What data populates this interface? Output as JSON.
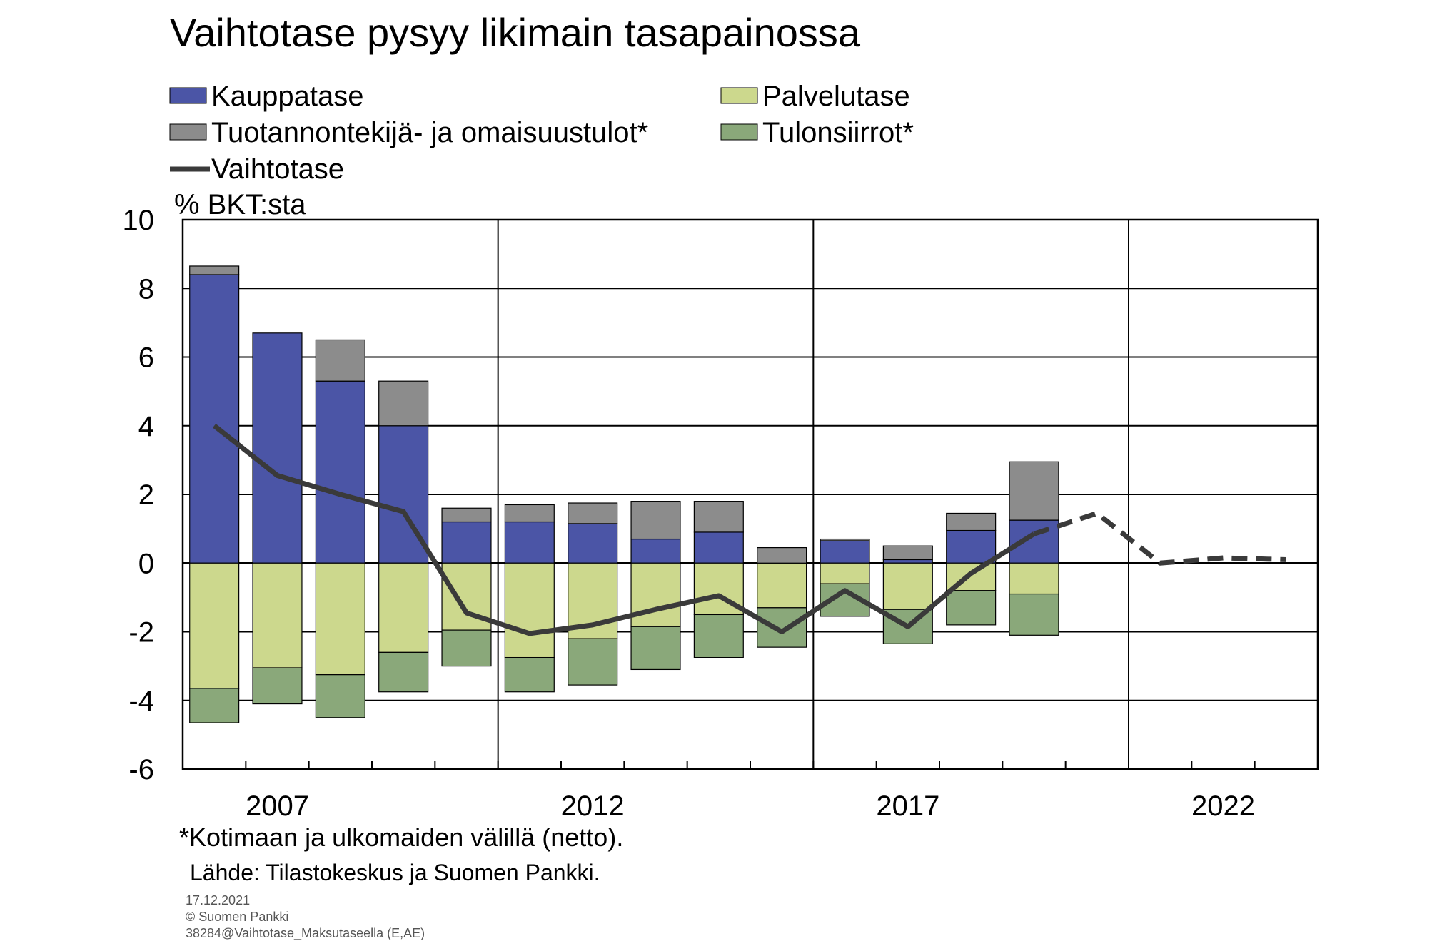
{
  "chart_data": {
    "type": "bar",
    "title": "Vaihtotase pysyy likimain tasapainossa",
    "ylabel": "% BKT:sta",
    "ylim": [
      -6,
      10
    ],
    "yticks": [
      "10",
      "8",
      "6",
      "4",
      "2",
      "0",
      "-2",
      "-4",
      "-6"
    ],
    "x_tick_labels": [
      "2007",
      "2012",
      "2017",
      "2022"
    ],
    "years": [
      2006,
      2007,
      2008,
      2009,
      2010,
      2011,
      2012,
      2013,
      2014,
      2015,
      2016,
      2017,
      2018,
      2019,
      2020,
      2021,
      2022,
      2023
    ],
    "stacked": true,
    "grid": true,
    "legend_position": "top",
    "series": [
      {
        "name": "Kauppatase",
        "color": "#4b55a6",
        "type": "bar",
        "values": [
          8.4,
          6.7,
          5.3,
          4.0,
          1.2,
          1.2,
          1.15,
          0.7,
          0.9,
          0.0,
          0.65,
          0.1,
          0.95,
          1.25,
          null,
          null,
          null,
          null
        ]
      },
      {
        "name": "Palvelutase",
        "color": "#ccd88d",
        "type": "bar",
        "values": [
          -3.65,
          -3.05,
          -3.25,
          -2.6,
          -1.95,
          -2.75,
          -2.2,
          -1.85,
          -1.5,
          -1.3,
          -0.6,
          -1.35,
          -0.8,
          -0.9,
          null,
          null,
          null,
          null
        ]
      },
      {
        "name": "Tuotannontekijä- ja omaisuustulot*",
        "color": "#8c8c8c",
        "type": "bar",
        "values": [
          0.25,
          0.0,
          1.2,
          1.3,
          0.4,
          0.5,
          0.6,
          1.1,
          0.9,
          0.45,
          0.05,
          0.4,
          0.5,
          1.7,
          null,
          null,
          null,
          null
        ]
      },
      {
        "name": "Tulonsiirrot*",
        "color": "#8aa87a",
        "type": "bar",
        "values": [
          -1.0,
          -1.05,
          -1.25,
          -1.15,
          -1.05,
          -1.0,
          -1.35,
          -1.25,
          -1.25,
          -1.15,
          -0.95,
          -1.0,
          -1.0,
          -1.2,
          null,
          null,
          null,
          null
        ]
      },
      {
        "name": "Vaihtotase",
        "color": "#3a3a3a",
        "type": "line",
        "values": [
          4.0,
          2.55,
          2.0,
          1.5,
          -1.45,
          -2.05,
          -1.8,
          -1.35,
          -0.95,
          -2.0,
          -0.8,
          -1.85,
          -0.3,
          0.85,
          1.45,
          0.0,
          0.15,
          0.1
        ],
        "forecast_from_index": 13
      }
    ],
    "footnote": "*Kotimaan ja ulkomaiden välillä (netto).",
    "source": "Lähde:  Tilastokeskus  ja Suomen Pankki.",
    "meta_date": "17.12.2021",
    "meta_copyright": "© Suomen Pankki",
    "meta_id": "38284@Vaihtotase_Maksutaseella  (E,AE)"
  }
}
